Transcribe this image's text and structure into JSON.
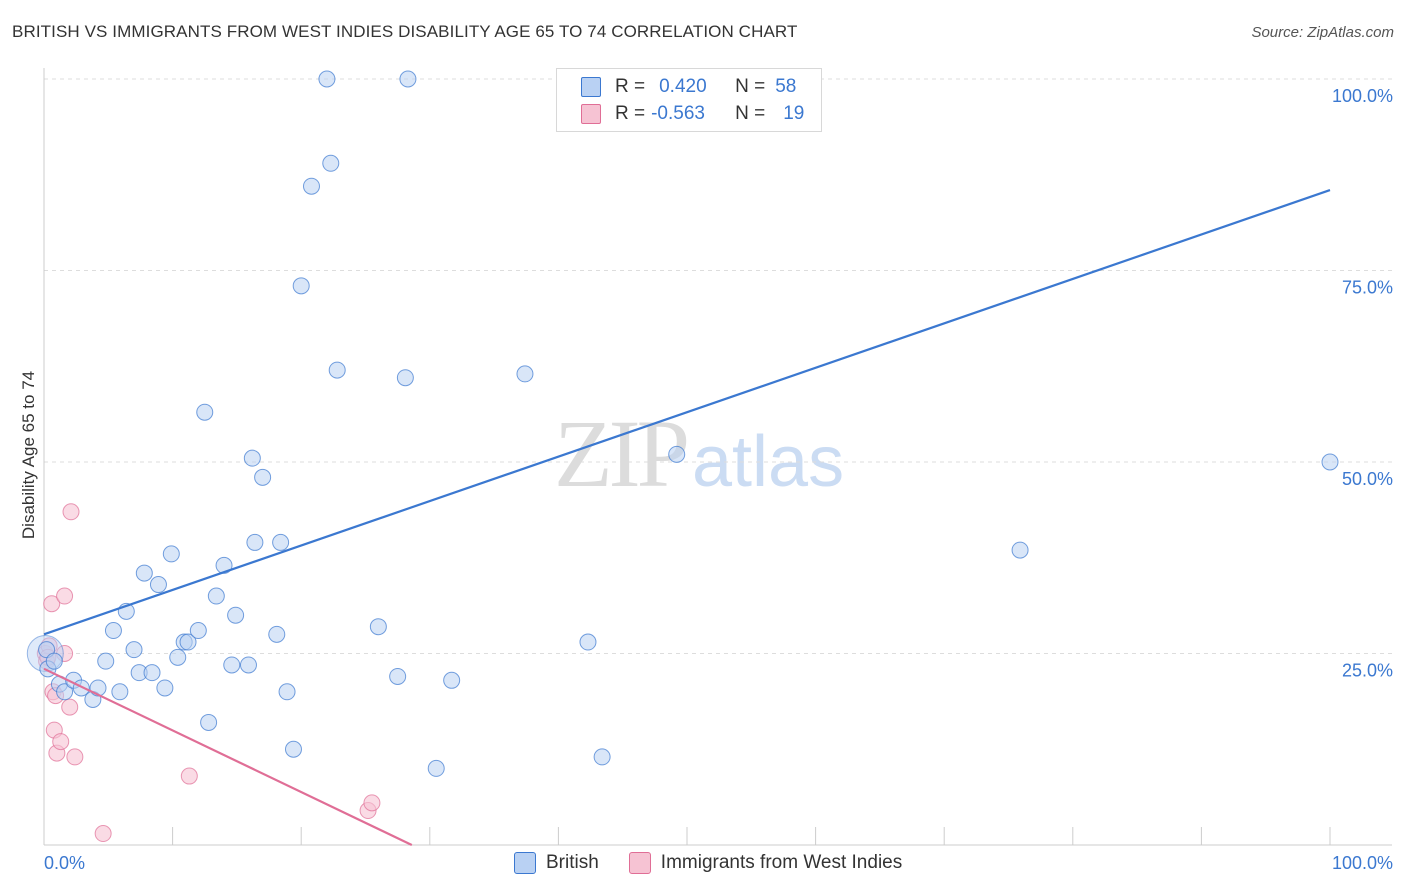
{
  "title": "BRITISH VS IMMIGRANTS FROM WEST INDIES DISABILITY AGE 65 TO 74 CORRELATION CHART",
  "source": "Source: ZipAtlas.com",
  "watermark": {
    "zip": "ZIP",
    "atlas": "atlas"
  },
  "legend": {
    "british": {
      "r_label": "R =",
      "r_value": "0.420",
      "n_label": "N =",
      "n_value": "58"
    },
    "westindies": {
      "r_label": "R =",
      "r_value": "-0.563",
      "n_label": "N =",
      "n_value": "19"
    }
  },
  "bottom_legend": {
    "british": "British",
    "westindies": "Immigrants from West Indies"
  },
  "colors": {
    "british": "#3b78d0",
    "british_fill": "#b9d1f3",
    "westindies": "#e06e96",
    "westindies_fill": "#f6c3d3",
    "grid": "#dddddd",
    "tick_label": "#3b78d0"
  },
  "chart_data": {
    "type": "scatter",
    "title": "BRITISH VS IMMIGRANTS FROM WEST INDIES DISABILITY AGE 65 TO 74 CORRELATION CHART",
    "xlabel": "",
    "ylabel": "Disability Age 65 to 74",
    "xlim": [
      0,
      100
    ],
    "ylim": [
      0,
      100
    ],
    "x_tick_labels": [
      "0.0%",
      "100.0%"
    ],
    "y_ticks": [
      25,
      50,
      75,
      100
    ],
    "y_tick_labels": [
      "25.0%",
      "50.0%",
      "75.0%",
      "100.0%"
    ],
    "series": [
      {
        "name": "British",
        "trendline": [
          [
            0,
            27.5
          ],
          [
            100,
            85.5
          ]
        ],
        "points": [
          [
            0.2,
            25.5
          ],
          [
            0.3,
            23.0
          ],
          [
            0.8,
            24.0
          ],
          [
            1.2,
            21.0
          ],
          [
            1.6,
            20.0
          ],
          [
            2.3,
            21.5
          ],
          [
            2.9,
            20.5
          ],
          [
            3.8,
            19.0
          ],
          [
            4.2,
            20.5
          ],
          [
            5.9,
            20.0
          ],
          [
            4.8,
            24.0
          ],
          [
            5.4,
            28.0
          ],
          [
            6.4,
            30.5
          ],
          [
            7.0,
            25.5
          ],
          [
            7.4,
            22.5
          ],
          [
            7.8,
            35.5
          ],
          [
            8.4,
            22.5
          ],
          [
            8.9,
            34.0
          ],
          [
            9.4,
            20.5
          ],
          [
            9.9,
            38.0
          ],
          [
            10.4,
            24.5
          ],
          [
            10.9,
            26.5
          ],
          [
            11.2,
            26.5
          ],
          [
            12.0,
            28.0
          ],
          [
            12.8,
            16.0
          ],
          [
            13.4,
            32.5
          ],
          [
            14.0,
            36.5
          ],
          [
            14.6,
            23.5
          ],
          [
            14.9,
            30.0
          ],
          [
            15.9,
            23.5
          ],
          [
            16.2,
            50.5
          ],
          [
            16.4,
            39.5
          ],
          [
            17.0,
            48.0
          ],
          [
            18.1,
            27.5
          ],
          [
            18.4,
            39.5
          ],
          [
            12.5,
            56.5
          ],
          [
            18.9,
            20.0
          ],
          [
            19.4,
            12.5
          ],
          [
            20.0,
            73.0
          ],
          [
            20.8,
            86.0
          ],
          [
            22.0,
            100.0
          ],
          [
            22.3,
            89.0
          ],
          [
            22.8,
            62.0
          ],
          [
            26.0,
            28.5
          ],
          [
            27.5,
            22.0
          ],
          [
            28.1,
            61.0
          ],
          [
            28.3,
            100.0
          ],
          [
            30.5,
            10.0
          ],
          [
            31.7,
            21.5
          ],
          [
            37.4,
            61.5
          ],
          [
            42.3,
            26.5
          ],
          [
            43.4,
            11.5
          ],
          [
            47.5,
            100.0
          ],
          [
            47.8,
            100.0
          ],
          [
            49.5,
            100.0
          ],
          [
            49.2,
            51.0
          ],
          [
            75.9,
            38.5
          ],
          [
            100.0,
            50.0
          ]
        ]
      },
      {
        "name": "Immigrants from West Indies",
        "trendline": [
          [
            0,
            23.0
          ],
          [
            28.6,
            0.0
          ]
        ],
        "points": [
          [
            0.1,
            25.0
          ],
          [
            0.2,
            24.0
          ],
          [
            0.4,
            26.0
          ],
          [
            0.6,
            31.5
          ],
          [
            0.7,
            20.0
          ],
          [
            0.8,
            15.0
          ],
          [
            0.9,
            19.5
          ],
          [
            1.0,
            12.0
          ],
          [
            1.3,
            13.5
          ],
          [
            1.6,
            32.5
          ],
          [
            1.6,
            25.0
          ],
          [
            2.0,
            18.0
          ],
          [
            2.1,
            43.5
          ],
          [
            2.4,
            11.5
          ],
          [
            4.6,
            1.5
          ],
          [
            11.3,
            9.0
          ],
          [
            25.2,
            4.5
          ],
          [
            25.5,
            5.5
          ],
          [
            0.3,
            24.5
          ]
        ]
      }
    ]
  }
}
